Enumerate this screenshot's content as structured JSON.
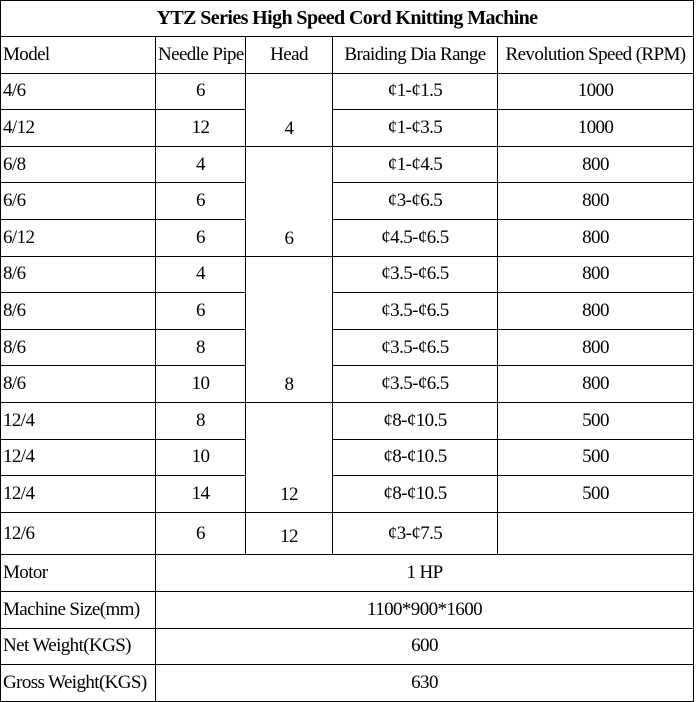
{
  "title": "YTZ Series High Speed Cord Knitting Machine",
  "columns": [
    "Model",
    "Needle Pipe",
    "Head",
    "Braiding Dia Range",
    "Revolution Speed (RPM)"
  ],
  "groups": [
    {
      "head": "4",
      "rows": [
        {
          "model": "4/6",
          "needle_pipe": "6",
          "braiding": "¢1-¢1.5",
          "speed": "1000"
        },
        {
          "model": "4/12",
          "needle_pipe": "12",
          "braiding": "¢1-¢3.5",
          "speed": "1000"
        }
      ]
    },
    {
      "head": "6",
      "rows": [
        {
          "model": "6/8",
          "needle_pipe": "4",
          "braiding": "¢1-¢4.5",
          "speed": "800"
        },
        {
          "model": "6/6",
          "needle_pipe": "6",
          "braiding": "¢3-¢6.5",
          "speed": "800"
        },
        {
          "model": "6/12",
          "needle_pipe": "6",
          "braiding": "¢4.5-¢6.5",
          "speed": "800"
        }
      ]
    },
    {
      "head": "8",
      "rows": [
        {
          "model": "8/6",
          "needle_pipe": "4",
          "braiding": "¢3.5-¢6.5",
          "speed": "800"
        },
        {
          "model": "8/6",
          "needle_pipe": "6",
          "braiding": "¢3.5-¢6.5",
          "speed": "800"
        },
        {
          "model": "8/6",
          "needle_pipe": "8",
          "braiding": "¢3.5-¢6.5",
          "speed": "800"
        },
        {
          "model": "8/6",
          "needle_pipe": "10",
          "braiding": "¢3.5-¢6.5",
          "speed": "800"
        }
      ]
    },
    {
      "head": "12",
      "rows": [
        {
          "model": "12/4",
          "needle_pipe": "8",
          "braiding": "¢8-¢10.5",
          "speed": "500"
        },
        {
          "model": "12/4",
          "needle_pipe": "10",
          "braiding": "¢8-¢10.5",
          "speed": "500"
        },
        {
          "model": "12/4",
          "needle_pipe": "14",
          "braiding": "¢8-¢10.5",
          "speed": "500"
        }
      ]
    },
    {
      "head": "12",
      "rows": [
        {
          "model": "12/6",
          "needle_pipe": "6",
          "braiding": "¢3-¢7.5"
        }
      ]
    }
  ],
  "specs": [
    {
      "label": "Motor",
      "value": "1 HP"
    },
    {
      "label": "Machine Size(mm)",
      "value": "1100*900*1600"
    },
    {
      "label": "Net Weight(KGS)",
      "value": "600"
    },
    {
      "label": "Gross Weight(KGS)",
      "value": "630"
    }
  ]
}
